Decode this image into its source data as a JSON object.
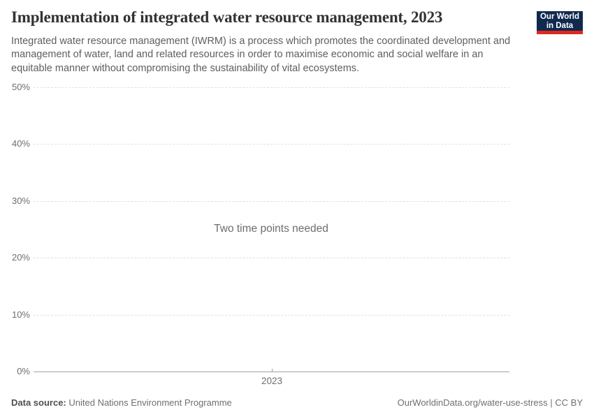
{
  "header": {
    "title": "Implementation of integrated water resource management, 2023",
    "subtitle": "Integrated water resource management (IWRM) is a process which promotes the coordinated development and management of water, land and related resources in order to maximise economic and social welfare in an equitable manner without compromising the sustainability of vital ecosystems.",
    "logo": {
      "line1": "Our World",
      "line2": "in Data",
      "bg_color": "#12294f",
      "accent_color": "#dc2a20"
    }
  },
  "chart_data": {
    "type": "line",
    "title": "Implementation of integrated water resource management, 2023",
    "empty_message": "Two time points needed",
    "series": [],
    "x_axis": {
      "ticks": [
        "2023"
      ]
    },
    "y_axis": {
      "unit": "%",
      "min": 0,
      "max": 50,
      "ticks": [
        {
          "value": 0,
          "label": "0%"
        },
        {
          "value": 10,
          "label": "10%"
        },
        {
          "value": 20,
          "label": "20%"
        },
        {
          "value": 30,
          "label": "30%"
        },
        {
          "value": 40,
          "label": "40%"
        },
        {
          "value": 50,
          "label": "50%"
        }
      ]
    },
    "grid": true,
    "legend": "none"
  },
  "footer": {
    "datasource_label": "Data source:",
    "datasource_value": "United Nations Environment Programme",
    "link": "OurWorldinData.org/water-use-stress | CC BY"
  },
  "colors": {
    "gridline": "#e1e1e1",
    "axis": "#a2a2a2",
    "tick_text": "#6e6e6e",
    "title_text": "#333333",
    "subtitle_text": "#5e5e5e"
  }
}
